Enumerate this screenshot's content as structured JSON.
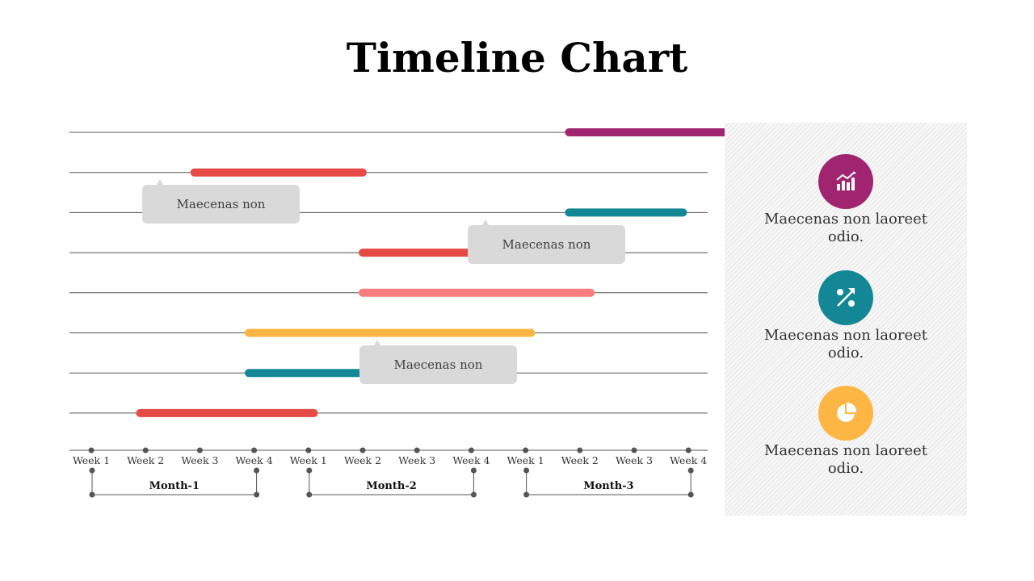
{
  "title": "Timeline Chart",
  "chart_data": {
    "type": "gantt",
    "periods": [
      {
        "month": "Month-1",
        "weeks": [
          "Week 1",
          "Week 2",
          "Week 3",
          "Week 4"
        ]
      },
      {
        "month": "Month-2",
        "weeks": [
          "Week 1",
          "Week 2",
          "Week 3",
          "Week 4"
        ]
      },
      {
        "month": "Month-3",
        "weeks": [
          "Week 1",
          "Week 2",
          "Week 3",
          "Week 4"
        ]
      }
    ],
    "tasks": [
      {
        "start": 8.8,
        "end": 12.1,
        "color": "#a0246f"
      },
      {
        "start": 1.9,
        "end": 5.0,
        "color": "#e54a44"
      },
      {
        "start": 8.8,
        "end": 10.9,
        "color": "#138795"
      },
      {
        "start": 5.0,
        "end": 7.0,
        "color": "#e54a44"
      },
      {
        "start": 5.0,
        "end": 9.2,
        "color": "#f97c7e"
      },
      {
        "start": 2.9,
        "end": 8.1,
        "color": "#fdb544"
      },
      {
        "start": 2.9,
        "end": 5.1,
        "color": "#138795"
      },
      {
        "start": 0.9,
        "end": 4.1,
        "color": "#e54a44"
      }
    ],
    "callouts": [
      {
        "text": "Maecenas non",
        "task_index": 1
      },
      {
        "text": "Maecenas non",
        "task_index": 2
      },
      {
        "text": "Maecenas non",
        "task_index": 5
      }
    ]
  },
  "side_items": [
    {
      "icon": "growth-chart-icon",
      "color": "#a0246f",
      "text": "Maecenas non laoreet odio."
    },
    {
      "icon": "percent-icon",
      "color": "#138795",
      "text": "Maecenas non laoreet odio."
    },
    {
      "icon": "pie-chart-icon",
      "color": "#fdb544",
      "text": "Maecenas non laoreet odio."
    }
  ]
}
